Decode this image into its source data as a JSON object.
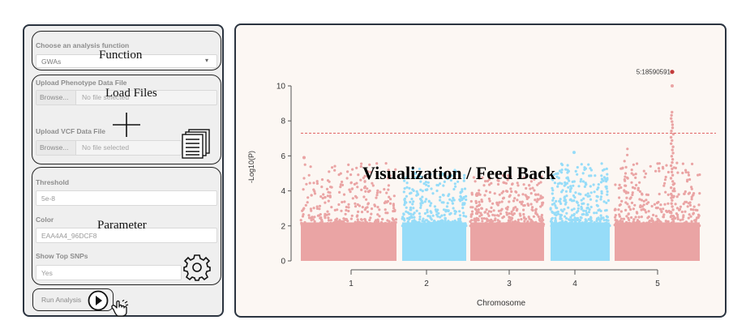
{
  "function_panel": {
    "label": "Choose an analysis function",
    "selected": "GWAs",
    "annotation": "Function"
  },
  "files_panel": {
    "phenotype_label": "Upload Phenotype Data File",
    "phenotype_browse": "Browse...",
    "phenotype_status": "No file selected",
    "vcf_label": "Upload VCF Data File",
    "vcf_browse": "Browse...",
    "vcf_status": "No file selected",
    "annotation": "Load Files"
  },
  "params_panel": {
    "threshold_label": "Threshold",
    "threshold_value": "5e-8",
    "color_label": "Color",
    "color_value": "EAA4A4_96DCF8",
    "top_snps_label": "Show Top SNPs",
    "top_snps_value": "Yes",
    "annotation": "Parameter"
  },
  "run": {
    "label": "Run Analysis"
  },
  "icons": [
    "plus-icon",
    "documents-icon",
    "gear-icon",
    "play-icon",
    "pointer-hand-icon",
    "chevron-down-icon"
  ],
  "visual_title": "Visualization / Feed Back",
  "chart_data": {
    "type": "scatter",
    "subtype": "manhattan",
    "xlabel": "Chromosome",
    "ylabel": "-Log10(P)",
    "ylim": [
      0,
      10.5
    ],
    "y_ticks": [
      0,
      2,
      4,
      6,
      8,
      10
    ],
    "categories": [
      "1",
      "2",
      "3",
      "4",
      "5"
    ],
    "significance_threshold": 7.3,
    "colors": [
      "#EAA4A4",
      "#96DCF8"
    ],
    "threshold_color": "#e06060",
    "top_snp_color": "#c23b3b",
    "peaks": [
      {
        "chromosome": "1",
        "max_y": 5.9
      },
      {
        "chromosome": "2",
        "max_y": 5.3
      },
      {
        "chromosome": "3",
        "max_y": 4.9
      },
      {
        "chromosome": "4",
        "max_y": 6.2
      },
      {
        "chromosome": "5",
        "max_y": 10.8
      }
    ],
    "top_snp": {
      "chromosome": "5",
      "y": 10.8,
      "label": "5:18590591"
    }
  }
}
